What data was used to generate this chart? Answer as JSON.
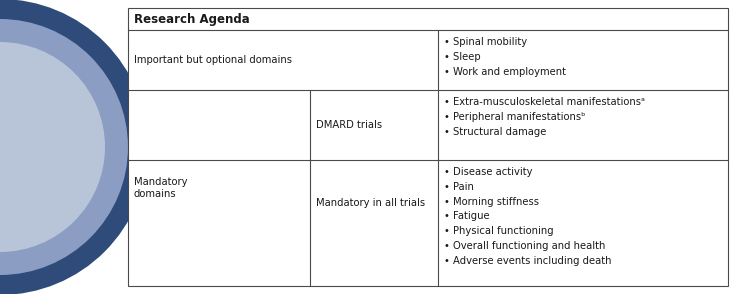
{
  "bg_color": "#ffffff",
  "outer_circle_color": "#2e4b7a",
  "inner_circle_color": "#8b9dc3",
  "innermost_circle_color": "#b8c4d8",
  "table_border_color": "#4a4a4a",
  "header_text": "Research Agenda",
  "header_font_size": 8.5,
  "row1_col1": "Important but optional domains",
  "row1_col2": "• Spinal mobility\n• Sleep\n• Work and employment",
  "row2_label": "Mandatory\ndomains",
  "row2_sub1_col1": "DMARD trials",
  "row2_sub1_col2": "• Extra-musculoskeletal manifestationsᵃ\n• Peripheral manifestationsᵇ\n• Structural damage",
  "row2_sub2_col1": "Mandatory in all trials",
  "row2_sub2_col2": "• Disease activity\n• Pain\n• Morning stiffness\n• Fatigue\n• Physical functioning\n• Overall functioning and health\n• Adverse events including death",
  "font_size": 7.2,
  "label_font_size": 7.2
}
